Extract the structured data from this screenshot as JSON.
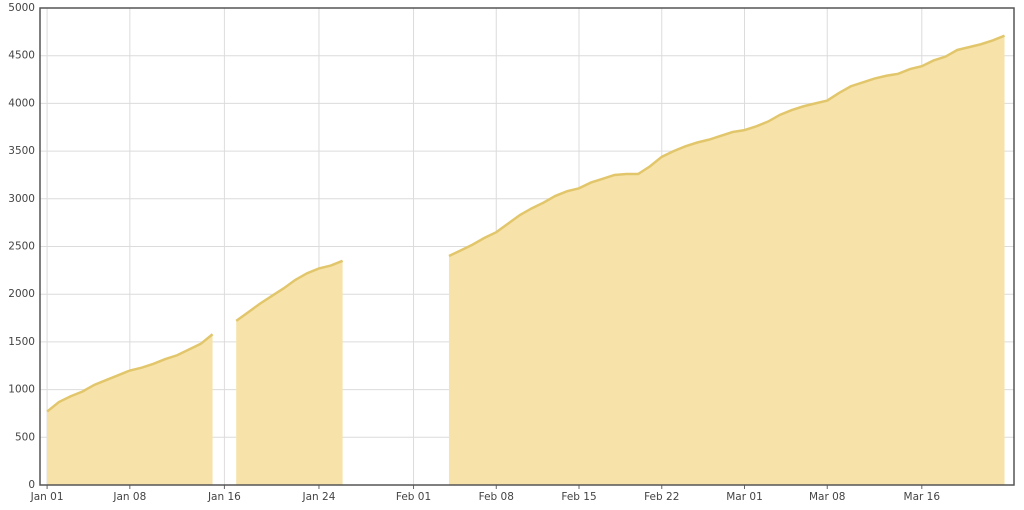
{
  "chart_data": {
    "type": "area",
    "color": "#f7e3a9",
    "line_color": "#e2c66c",
    "grid": true,
    "xlim": [
      -0.6,
      81.8
    ],
    "ylim": [
      0,
      5000
    ],
    "yticks": [
      0,
      500,
      1000,
      1500,
      2000,
      2500,
      3000,
      3500,
      4000,
      4500,
      5000
    ],
    "xticks": [
      {
        "value": 0,
        "label": "Jan 01"
      },
      {
        "value": 7,
        "label": "Jan 08"
      },
      {
        "value": 15,
        "label": "Jan 16"
      },
      {
        "value": 23,
        "label": "Jan 24"
      },
      {
        "value": 31,
        "label": "Feb 01"
      },
      {
        "value": 38,
        "label": "Feb 08"
      },
      {
        "value": 45,
        "label": "Feb 15"
      },
      {
        "value": 52,
        "label": "Feb 22"
      },
      {
        "value": 59,
        "label": "Mar 01"
      },
      {
        "value": 66,
        "label": "Mar 08"
      },
      {
        "value": 74,
        "label": "Mar 16"
      }
    ],
    "x": [
      0,
      1,
      2,
      3,
      4,
      5,
      6,
      7,
      8,
      9,
      10,
      11,
      12,
      13,
      14,
      15,
      16,
      17,
      18,
      19,
      20,
      21,
      22,
      23,
      24,
      25,
      26,
      27,
      28,
      29,
      30,
      31,
      32,
      33,
      34,
      35,
      36,
      37,
      38,
      39,
      40,
      41,
      42,
      43,
      44,
      45,
      46,
      47,
      48,
      49,
      50,
      51,
      52,
      53,
      54,
      55,
      56,
      57,
      58,
      59,
      60,
      61,
      62,
      63,
      64,
      65,
      66,
      67,
      68,
      69,
      70,
      71,
      72,
      73,
      74,
      75,
      76,
      77,
      78,
      79,
      80,
      81
    ],
    "values": [
      770,
      870,
      930,
      980,
      1050,
      1100,
      1150,
      1200,
      1230,
      1270,
      1320,
      1360,
      1420,
      1480,
      1580,
      null,
      1720,
      1810,
      1900,
      1980,
      2060,
      2150,
      2220,
      2270,
      2300,
      2350,
      null,
      null,
      null,
      null,
      null,
      null,
      null,
      null,
      2400,
      2460,
      2520,
      2590,
      2650,
      2740,
      2830,
      2900,
      2960,
      3030,
      3080,
      3110,
      3170,
      3210,
      3250,
      3260,
      3260,
      3340,
      3440,
      3500,
      3550,
      3590,
      3620,
      3660,
      3700,
      3720,
      3760,
      3810,
      3880,
      3930,
      3970,
      4000,
      4030,
      4110,
      4180,
      4220,
      4260,
      4290,
      4310,
      4360,
      4390,
      4450,
      4490,
      4560,
      4590,
      4620,
      4660,
      4710
    ]
  }
}
